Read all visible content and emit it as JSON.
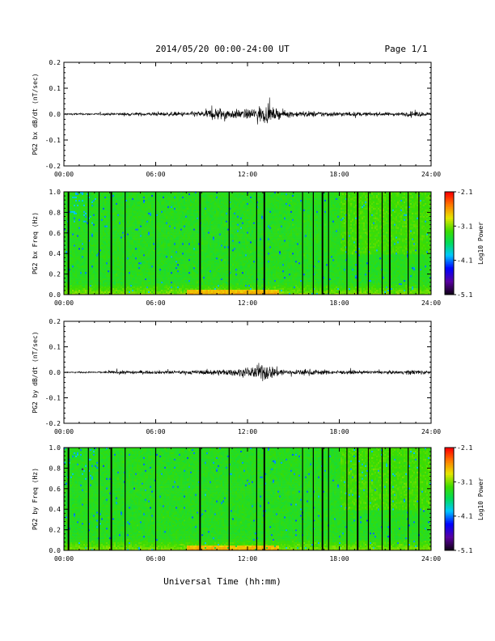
{
  "header": {
    "title": "2014/05/20  00:00-24:00 UT",
    "page": "Page 1/1"
  },
  "footer": {
    "xlabel": "Universal Time (hh:mm)"
  },
  "chart_data": [
    {
      "type": "line",
      "panel": "bx-dbdt",
      "ylabel": "PG2 bx dB/dt (nT/sec)",
      "ylim": [
        -0.2,
        0.2
      ],
      "yticks": [
        "0.2",
        "0.1",
        "0.0",
        "-0.1",
        "-0.2"
      ],
      "xlim": [
        0,
        24
      ],
      "xticks": [
        "00:00",
        "06:00",
        "12:00",
        "18:00",
        "24:00"
      ],
      "series": [
        {
          "x": [
            0,
            2,
            4,
            6,
            8,
            9,
            10,
            11,
            12,
            13,
            14,
            15,
            16,
            18,
            20,
            22,
            23,
            24
          ],
          "amplitude": [
            0.006,
            0.006,
            0.01,
            0.012,
            0.015,
            0.02,
            0.045,
            0.03,
            0.03,
            0.06,
            0.03,
            0.018,
            0.02,
            0.015,
            0.012,
            0.012,
            0.02,
            0.008
          ]
        }
      ]
    },
    {
      "type": "heatmap",
      "panel": "bx-spectrogram",
      "ylabel": "PG2 bx Freq (Hz)",
      "ylim": [
        0.0,
        1.0
      ],
      "yticks": [
        "1.0",
        "0.8",
        "0.6",
        "0.4",
        "0.2",
        "0.0"
      ],
      "xlim": [
        0,
        24
      ],
      "xticks": [
        "00:00",
        "06:00",
        "12:00",
        "18:00",
        "24:00"
      ],
      "colorbar": {
        "label": "Log10 Power",
        "ticks": [
          "-2.1",
          "-3.1",
          "-4.1",
          "-5.1"
        ],
        "range": [
          -5.1,
          -2.1
        ]
      },
      "gap_lines_hours": [
        0.3,
        1.6,
        2.3,
        3.1,
        4.0,
        6.0,
        8.9,
        10.8,
        12.6,
        13.1,
        15.6,
        16.3,
        16.9,
        17.3,
        18.5,
        19.2,
        19.9,
        20.8,
        21.3,
        22.5,
        23.2
      ]
    },
    {
      "type": "line",
      "panel": "by-dbdt",
      "ylabel": "PG2 by dB/dt (nT/sec)",
      "ylim": [
        -0.2,
        0.2
      ],
      "yticks": [
        "0.2",
        "0.1",
        "0.0",
        "-0.1",
        "-0.2"
      ],
      "xlim": [
        0,
        24
      ],
      "xticks": [
        "00:00",
        "06:00",
        "12:00",
        "18:00",
        "24:00"
      ],
      "series": [
        {
          "x": [
            0,
            2,
            4,
            6,
            8,
            9,
            10,
            11,
            12,
            13,
            14,
            15,
            16,
            18,
            20,
            22,
            23,
            24
          ],
          "amplitude": [
            0.004,
            0.005,
            0.012,
            0.01,
            0.012,
            0.015,
            0.02,
            0.02,
            0.03,
            0.06,
            0.03,
            0.015,
            0.02,
            0.012,
            0.01,
            0.01,
            0.02,
            0.008
          ]
        }
      ]
    },
    {
      "type": "heatmap",
      "panel": "by-spectrogram",
      "ylabel": "PG2 by Freq (Hz)",
      "ylim": [
        0.0,
        1.0
      ],
      "yticks": [
        "1.0",
        "0.8",
        "0.6",
        "0.4",
        "0.2",
        "0.0"
      ],
      "xlim": [
        0,
        24
      ],
      "xticks": [
        "00:00",
        "06:00",
        "12:00",
        "18:00",
        "24:00"
      ],
      "colorbar": {
        "label": "Log10 Power",
        "ticks": [
          "-2.1",
          "-3.1",
          "-4.1",
          "-5.1"
        ],
        "range": [
          -5.1,
          -2.1
        ]
      },
      "gap_lines_hours": [
        0.3,
        1.6,
        2.3,
        3.1,
        4.0,
        6.0,
        8.9,
        10.8,
        12.6,
        13.1,
        15.6,
        16.3,
        16.9,
        17.3,
        18.5,
        19.2,
        19.9,
        20.8,
        21.3,
        22.5,
        23.2
      ]
    }
  ]
}
